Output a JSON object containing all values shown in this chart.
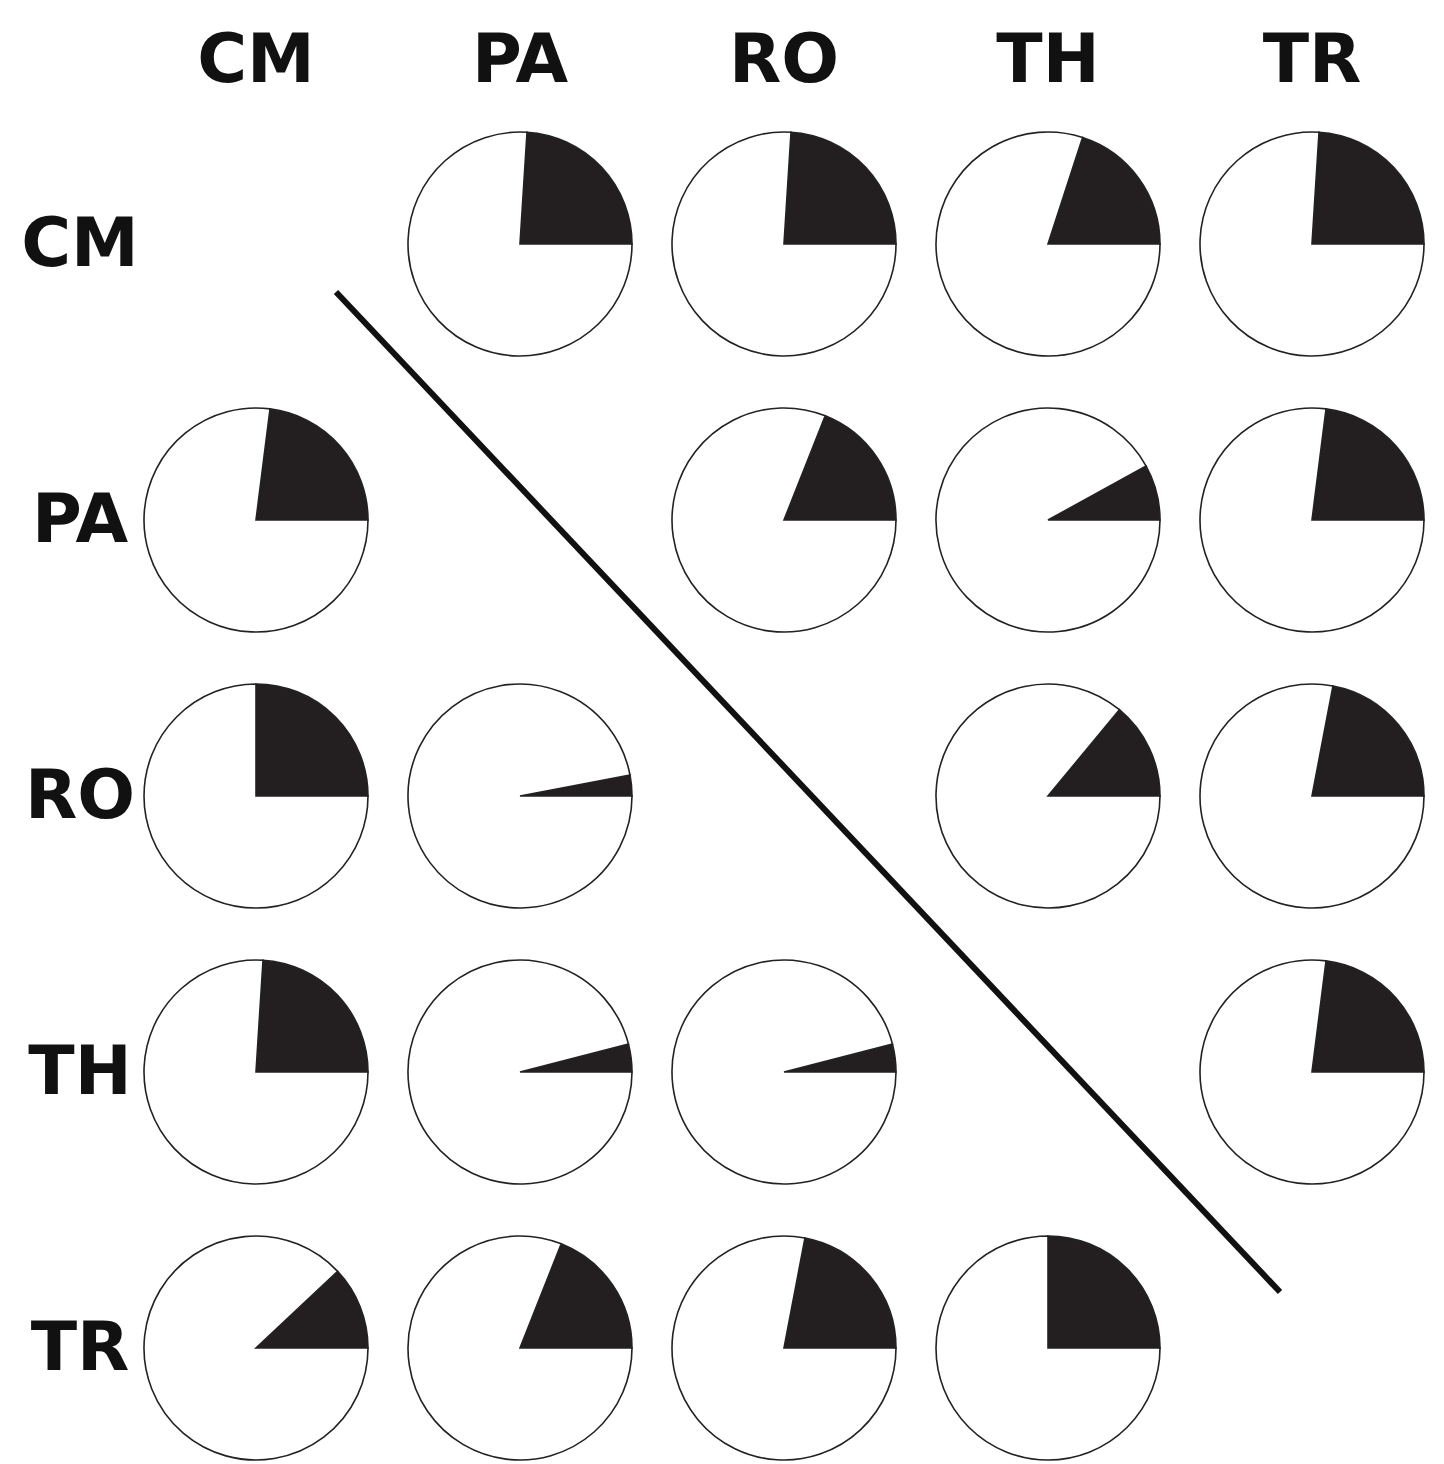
{
  "chart_data": [
    {
      "type": "other",
      "annotations": [
        "CM",
        "PA",
        "RO",
        "TH",
        "TR",
        "CM",
        "PA",
        "RO",
        "TH",
        "TR"
      ]
    },
    {
      "type": "pie",
      "categories": [
        null,
        null
      ],
      "values": [
        24,
        76
      ],
      "colors": [
        "#231f20",
        "#ffffff"
      ]
    },
    {
      "type": "pie",
      "categories": [
        null,
        null
      ],
      "values": [
        24,
        76
      ],
      "colors": [
        "#231f20",
        "#ffffff"
      ]
    },
    {
      "type": "pie",
      "categories": [
        null,
        null
      ],
      "values": [
        20,
        80
      ],
      "colors": [
        "#231f20",
        "#ffffff"
      ]
    },
    {
      "type": "pie",
      "categories": [
        null,
        null
      ],
      "values": [
        24,
        76
      ],
      "colors": [
        "#231f20",
        "#ffffff"
      ]
    },
    {
      "type": "pie",
      "categories": [
        null,
        null
      ],
      "values": [
        23,
        77
      ],
      "colors": [
        "#231f20",
        "#ffffff"
      ]
    },
    {
      "type": "pie",
      "categories": [
        null,
        null
      ],
      "values": [
        19,
        81
      ],
      "colors": [
        "#231f20",
        "#ffffff"
      ]
    },
    {
      "type": "pie",
      "categories": [
        null,
        null
      ],
      "values": [
        8,
        92
      ],
      "colors": [
        "#231f20",
        "#ffffff"
      ]
    },
    {
      "type": "pie",
      "categories": [
        null,
        null
      ],
      "values": [
        23,
        77
      ],
      "colors": [
        "#231f20",
        "#ffffff"
      ]
    },
    {
      "type": "pie",
      "categories": [
        null,
        null
      ],
      "values": [
        25,
        75
      ],
      "colors": [
        "#231f20",
        "#ffffff"
      ]
    },
    {
      "type": "pie",
      "categories": [
        null,
        null
      ],
      "values": [
        3,
        97
      ],
      "colors": [
        "#231f20",
        "#ffffff"
      ]
    },
    {
      "type": "pie",
      "categories": [
        null,
        null
      ],
      "values": [
        14,
        86
      ],
      "colors": [
        "#231f20",
        "#ffffff"
      ]
    },
    {
      "type": "pie",
      "categories": [
        null,
        null
      ],
      "values": [
        22,
        78
      ],
      "colors": [
        "#231f20",
        "#ffffff"
      ]
    },
    {
      "type": "pie",
      "categories": [
        null,
        null
      ],
      "values": [
        24,
        76
      ],
      "colors": [
        "#231f20",
        "#ffffff"
      ]
    },
    {
      "type": "pie",
      "categories": [
        null,
        null
      ],
      "values": [
        4,
        96
      ],
      "colors": [
        "#231f20",
        "#ffffff"
      ]
    },
    {
      "type": "pie",
      "categories": [
        null,
        null
      ],
      "values": [
        4,
        96
      ],
      "colors": [
        "#231f20",
        "#ffffff"
      ]
    },
    {
      "type": "pie",
      "categories": [
        null,
        null
      ],
      "values": [
        23,
        77
      ],
      "colors": [
        "#231f20",
        "#ffffff"
      ]
    },
    {
      "type": "pie",
      "categories": [
        null,
        null
      ],
      "values": [
        12,
        88
      ],
      "colors": [
        "#231f20",
        "#ffffff"
      ]
    },
    {
      "type": "pie",
      "categories": [
        null,
        null
      ],
      "values": [
        19,
        81
      ],
      "colors": [
        "#231f20",
        "#ffffff"
      ]
    },
    {
      "type": "pie",
      "categories": [
        null,
        null
      ],
      "values": [
        22,
        78
      ],
      "colors": [
        "#231f20",
        "#ffffff"
      ]
    },
    {
      "type": "pie",
      "categories": [
        null,
        null
      ],
      "values": [
        25,
        75
      ],
      "colors": [
        "#231f20",
        "#ffffff"
      ]
    }
  ]
}
